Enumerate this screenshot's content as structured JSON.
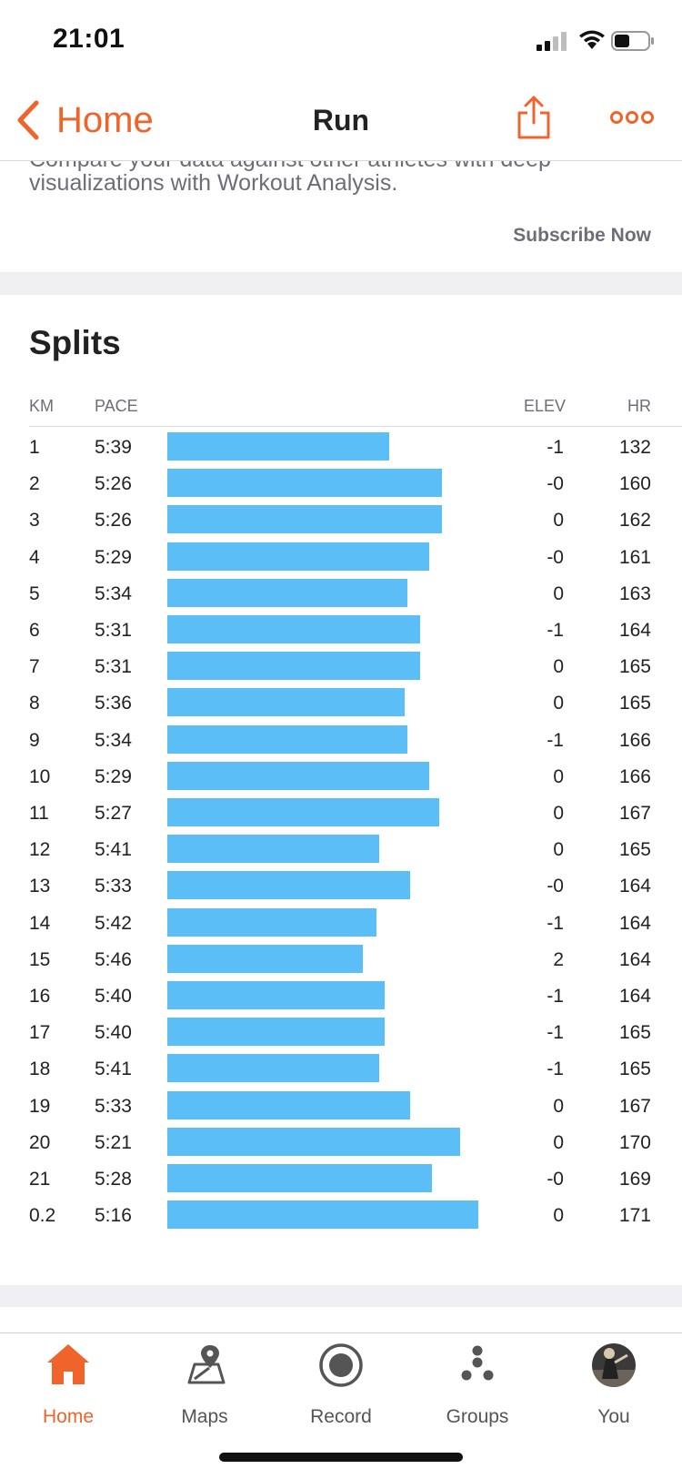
{
  "status_bar": {
    "time": "21:01"
  },
  "nav": {
    "back_label": "Home",
    "title": "Run"
  },
  "promo": {
    "cut_text": "Compare your data against other athletes with deep",
    "text": "visualizations with Workout Analysis.",
    "subscribe_label": "Subscribe Now"
  },
  "splits": {
    "title": "Splits",
    "columns": {
      "km": "KM",
      "pace": "PACE",
      "elev": "ELEV",
      "hr": "HR"
    },
    "rows": [
      {
        "km": "1",
        "pace": "5:39",
        "elev": "-1",
        "hr": "132",
        "bar": 0.712
      },
      {
        "km": "2",
        "pace": "5:26",
        "elev": "-0",
        "hr": "160",
        "bar": 0.882
      },
      {
        "km": "3",
        "pace": "5:26",
        "elev": "0",
        "hr": "162",
        "bar": 0.882
      },
      {
        "km": "4",
        "pace": "5:29",
        "elev": "-0",
        "hr": "161",
        "bar": 0.842
      },
      {
        "km": "5",
        "pace": "5:34",
        "elev": "0",
        "hr": "163",
        "bar": 0.773
      },
      {
        "km": "6",
        "pace": "5:31",
        "elev": "-1",
        "hr": "164",
        "bar": 0.812
      },
      {
        "km": "7",
        "pace": "5:31",
        "elev": "0",
        "hr": "165",
        "bar": 0.812
      },
      {
        "km": "8",
        "pace": "5:36",
        "elev": "0",
        "hr": "165",
        "bar": 0.764
      },
      {
        "km": "9",
        "pace": "5:34",
        "elev": "-1",
        "hr": "166",
        "bar": 0.773
      },
      {
        "km": "10",
        "pace": "5:29",
        "elev": "0",
        "hr": "166",
        "bar": 0.842
      },
      {
        "km": "11",
        "pace": "5:27",
        "elev": "0",
        "hr": "167",
        "bar": 0.873
      },
      {
        "km": "12",
        "pace": "5:41",
        "elev": "0",
        "hr": "165",
        "bar": 0.682
      },
      {
        "km": "13",
        "pace": "5:33",
        "elev": "-0",
        "hr": "164",
        "bar": 0.782
      },
      {
        "km": "14",
        "pace": "5:42",
        "elev": "-1",
        "hr": "164",
        "bar": 0.673
      },
      {
        "km": "15",
        "pace": "5:46",
        "elev": "2",
        "hr": "164",
        "bar": 0.63
      },
      {
        "km": "16",
        "pace": "5:40",
        "elev": "-1",
        "hr": "164",
        "bar": 0.7
      },
      {
        "km": "17",
        "pace": "5:40",
        "elev": "-1",
        "hr": "165",
        "bar": 0.7
      },
      {
        "km": "18",
        "pace": "5:41",
        "elev": "-1",
        "hr": "165",
        "bar": 0.682
      },
      {
        "km": "19",
        "pace": "5:33",
        "elev": "0",
        "hr": "167",
        "bar": 0.782
      },
      {
        "km": "20",
        "pace": "5:21",
        "elev": "0",
        "hr": "170",
        "bar": 0.942
      },
      {
        "km": "21",
        "pace": "5:28",
        "elev": "-0",
        "hr": "169",
        "bar": 0.852
      },
      {
        "km": "0.2",
        "pace": "5:16",
        "elev": "0",
        "hr": "171",
        "bar": 1.0
      }
    ],
    "bar_color": "#5bbef7"
  },
  "tabs": [
    {
      "id": "home",
      "label": "Home",
      "icon": "home-icon",
      "active": true
    },
    {
      "id": "maps",
      "label": "Maps",
      "icon": "map-pin-icon",
      "active": false
    },
    {
      "id": "record",
      "label": "Record",
      "icon": "record-icon",
      "active": false
    },
    {
      "id": "groups",
      "label": "Groups",
      "icon": "groups-icon",
      "active": false
    },
    {
      "id": "you",
      "label": "You",
      "icon": "avatar",
      "active": false
    }
  ],
  "accent_color": "#f0632b"
}
